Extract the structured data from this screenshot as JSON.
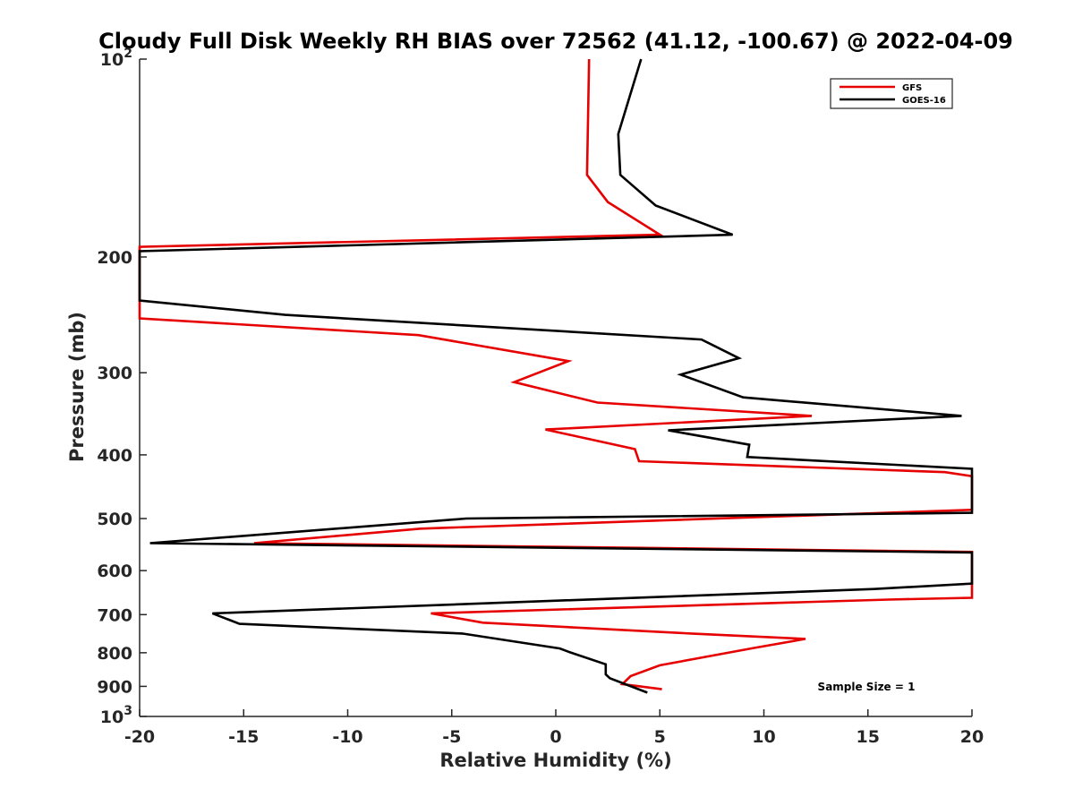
{
  "chart_data": {
    "type": "line",
    "title": "Cloudy Full Disk Weekly RH BIAS over 72562 (41.12, -100.67) @ 2022-04-09",
    "xlabel": "Relative Humidity (%)",
    "ylabel": "Pressure (mb)",
    "xlim": [
      -20,
      20
    ],
    "ylim": [
      100,
      1000
    ],
    "y_scale": "log",
    "y_reversed": true,
    "grid": false,
    "legend_position": "top-right",
    "x_ticks": [
      "-20",
      "-15",
      "-10",
      "-5",
      "0",
      "5",
      "10",
      "15",
      "20"
    ],
    "y_ticks": [
      {
        "value": 100,
        "label": "10",
        "sup": "2"
      },
      {
        "value": 200,
        "label": "200"
      },
      {
        "value": 300,
        "label": "300"
      },
      {
        "value": 400,
        "label": "400"
      },
      {
        "value": 500,
        "label": "500"
      },
      {
        "value": 600,
        "label": "600"
      },
      {
        "value": 700,
        "label": "700"
      },
      {
        "value": 800,
        "label": "800"
      },
      {
        "value": 900,
        "label": "900"
      },
      {
        "value": 1000,
        "label": "10",
        "sup": "3"
      }
    ],
    "series": [
      {
        "name": "GFS",
        "color": "#e60000",
        "points": [
          {
            "x": 1.6,
            "y": 100
          },
          {
            "x": 1.5,
            "y": 150
          },
          {
            "x": 2.5,
            "y": 165
          },
          {
            "x": 5.0,
            "y": 185
          },
          {
            "x": -20,
            "y": 193
          },
          {
            "x": -20,
            "y": 248
          },
          {
            "x": -6.6,
            "y": 263
          },
          {
            "x": 0.6,
            "y": 288
          },
          {
            "x": -2.0,
            "y": 310
          },
          {
            "x": 2.0,
            "y": 333
          },
          {
            "x": 12.3,
            "y": 349
          },
          {
            "x": -0.5,
            "y": 366
          },
          {
            "x": 3.8,
            "y": 392
          },
          {
            "x": 4.0,
            "y": 409
          },
          {
            "x": 18.7,
            "y": 425
          },
          {
            "x": 20,
            "y": 431
          },
          {
            "x": 20,
            "y": 485
          },
          {
            "x": -6.5,
            "y": 518
          },
          {
            "x": -14.5,
            "y": 545
          },
          {
            "x": 20,
            "y": 562
          },
          {
            "x": 20,
            "y": 660
          },
          {
            "x": 16,
            "y": 664
          },
          {
            "x": -6.0,
            "y": 697
          },
          {
            "x": -3.5,
            "y": 720
          },
          {
            "x": 6.5,
            "y": 748
          },
          {
            "x": 12.0,
            "y": 762
          },
          {
            "x": 9.5,
            "y": 787
          },
          {
            "x": 5.0,
            "y": 836
          },
          {
            "x": 3.6,
            "y": 868
          },
          {
            "x": 3.2,
            "y": 893
          },
          {
            "x": 5.1,
            "y": 909
          }
        ]
      },
      {
        "name": "GOES-16",
        "color": "#000000",
        "points": [
          {
            "x": 4.1,
            "y": 100
          },
          {
            "x": 3.0,
            "y": 130
          },
          {
            "x": 3.1,
            "y": 150
          },
          {
            "x": 4.8,
            "y": 167
          },
          {
            "x": 8.5,
            "y": 185
          },
          {
            "x": -20,
            "y": 196
          },
          {
            "x": -20,
            "y": 233
          },
          {
            "x": -13.0,
            "y": 245
          },
          {
            "x": 7.0,
            "y": 267
          },
          {
            "x": 8.8,
            "y": 285
          },
          {
            "x": 6.0,
            "y": 302
          },
          {
            "x": 9.0,
            "y": 327
          },
          {
            "x": 19.5,
            "y": 349
          },
          {
            "x": 5.4,
            "y": 367
          },
          {
            "x": 9.3,
            "y": 386
          },
          {
            "x": 9.2,
            "y": 403
          },
          {
            "x": 20,
            "y": 420
          },
          {
            "x": 20,
            "y": 490
          },
          {
            "x": -4.3,
            "y": 500
          },
          {
            "x": -19.5,
            "y": 545
          },
          {
            "x": 20,
            "y": 563
          },
          {
            "x": 20,
            "y": 628
          },
          {
            "x": 15.3,
            "y": 640
          },
          {
            "x": -16.5,
            "y": 697
          },
          {
            "x": -15.2,
            "y": 723
          },
          {
            "x": -4.5,
            "y": 748
          },
          {
            "x": 0.2,
            "y": 788
          },
          {
            "x": 0.6,
            "y": 797
          },
          {
            "x": 2.4,
            "y": 833
          },
          {
            "x": 2.4,
            "y": 863
          },
          {
            "x": 2.6,
            "y": 875
          },
          {
            "x": 4.4,
            "y": 920
          }
        ]
      }
    ],
    "annotation": "Sample Size = 1"
  }
}
